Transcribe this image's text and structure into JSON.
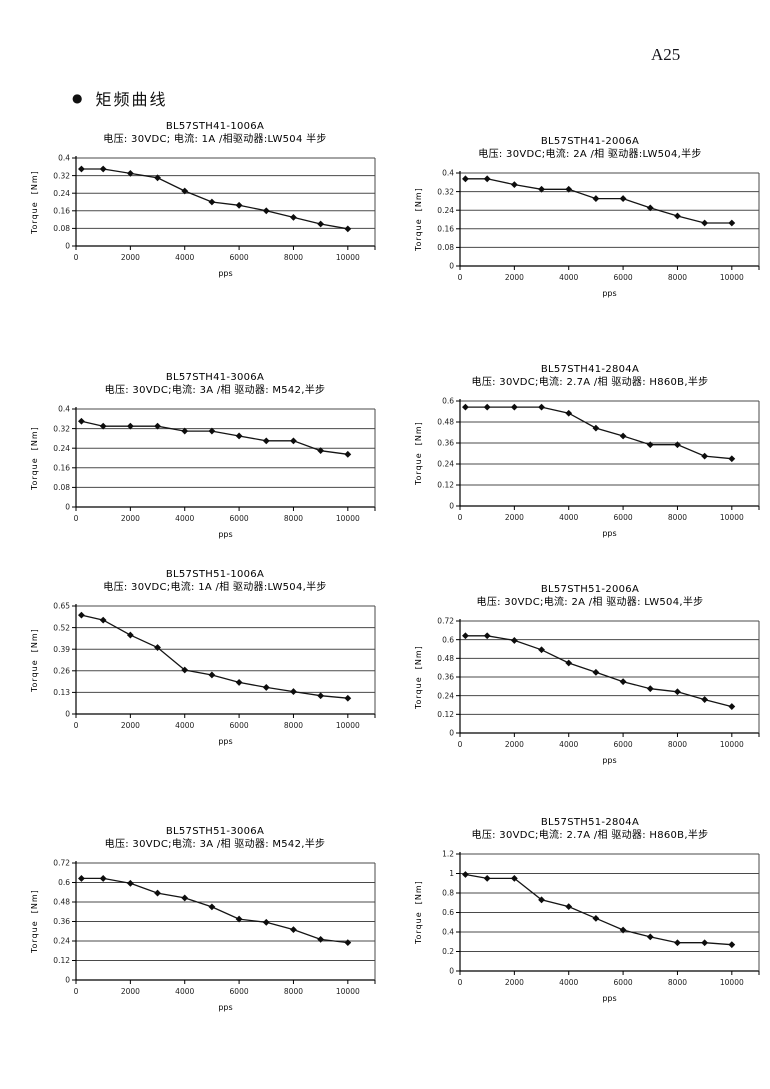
{
  "page": {
    "page_number": "A25",
    "section_bullet": "●",
    "section_title": "矩频曲线"
  },
  "chart_data": [
    {
      "type": "line",
      "title": "BL57STH41-1006A",
      "subtitle": "电压: 30VDC; 电流: 1A /相驱动器:LW504 半步",
      "xlabel": "pps",
      "ylabel": "Torque  [Nm]",
      "ylim": [
        0,
        0.4
      ],
      "yticks": [
        0,
        0.08,
        0.16,
        0.24,
        0.32,
        0.4
      ],
      "x_ticks": [
        0,
        2000,
        4000,
        6000,
        8000,
        10000
      ],
      "x_max": 11000,
      "x": [
        200,
        1000,
        2000,
        3000,
        4000,
        5000,
        6000,
        7000,
        8000,
        9000,
        10000
      ],
      "y": [
        0.35,
        0.35,
        0.33,
        0.31,
        0.25,
        0.2,
        0.185,
        0.16,
        0.13,
        0.1,
        0.078
      ]
    },
    {
      "type": "line",
      "title": "BL57STH41-2006A",
      "subtitle": "电压: 30VDC;电流: 2A /相 驱动器:LW504,半步",
      "xlabel": "pps",
      "ylabel": "Torque  [Nm]",
      "ylim": [
        0,
        0.4
      ],
      "yticks": [
        0,
        0.08,
        0.16,
        0.24,
        0.32,
        0.4
      ],
      "x_ticks": [
        0,
        2000,
        4000,
        6000,
        8000,
        10000
      ],
      "x_max": 11000,
      "x": [
        200,
        1000,
        2000,
        3000,
        4000,
        5000,
        6000,
        7000,
        8000,
        9000,
        10000
      ],
      "y": [
        0.375,
        0.375,
        0.35,
        0.33,
        0.33,
        0.29,
        0.29,
        0.25,
        0.215,
        0.185,
        0.185
      ]
    },
    {
      "type": "line",
      "title": "BL57STH41-3006A",
      "subtitle": "电压: 30VDC;电流: 3A /相  驱动器: M542,半步",
      "xlabel": "pps",
      "ylabel": "Torque  [Nm]",
      "ylim": [
        0,
        0.4
      ],
      "yticks": [
        0,
        0.08,
        0.16,
        0.24,
        0.32,
        0.4
      ],
      "x_ticks": [
        0,
        2000,
        4000,
        6000,
        8000,
        10000
      ],
      "x_max": 11000,
      "x": [
        200,
        1000,
        2000,
        3000,
        4000,
        5000,
        6000,
        7000,
        8000,
        9000,
        10000
      ],
      "y": [
        0.35,
        0.33,
        0.33,
        0.33,
        0.31,
        0.31,
        0.29,
        0.27,
        0.27,
        0.23,
        0.215
      ]
    },
    {
      "type": "line",
      "title": "BL57STH41-2804A",
      "subtitle": "电压: 30VDC;电流: 2.7A /相 驱动器: H860B,半步",
      "xlabel": "pps",
      "ylabel": "Torque  [Nm]",
      "ylim": [
        0,
        0.6
      ],
      "yticks": [
        0,
        0.12,
        0.24,
        0.36,
        0.48,
        0.6
      ],
      "x_ticks": [
        0,
        2000,
        4000,
        6000,
        8000,
        10000
      ],
      "x_max": 11000,
      "x": [
        200,
        1000,
        2000,
        3000,
        4000,
        5000,
        6000,
        7000,
        8000,
        9000,
        10000
      ],
      "y": [
        0.565,
        0.565,
        0.565,
        0.565,
        0.53,
        0.445,
        0.4,
        0.35,
        0.35,
        0.285,
        0.27
      ]
    },
    {
      "type": "line",
      "title": "BL57STH51-1006A",
      "subtitle": "电压: 30VDC;电流: 1A /相  驱动器:LW504,半步",
      "xlabel": "pps",
      "ylabel": "Torque  [Nm]",
      "ylim": [
        0,
        0.65
      ],
      "yticks": [
        0,
        0.13,
        0.26,
        0.39,
        0.52,
        0.65
      ],
      "x_ticks": [
        0,
        2000,
        4000,
        6000,
        8000,
        10000
      ],
      "x_max": 11000,
      "x": [
        200,
        1000,
        2000,
        3000,
        4000,
        5000,
        6000,
        7000,
        8000,
        9000,
        10000
      ],
      "y": [
        0.595,
        0.565,
        0.475,
        0.4,
        0.265,
        0.235,
        0.19,
        0.16,
        0.135,
        0.11,
        0.095
      ]
    },
    {
      "type": "line",
      "title": "BL57STH51-2006A",
      "subtitle": "电压: 30VDC;电流: 2A /相  驱动器: LW504,半步",
      "xlabel": "pps",
      "ylabel": "Torque  [Nm]",
      "ylim": [
        0,
        0.72
      ],
      "yticks": [
        0,
        0.12,
        0.24,
        0.36,
        0.48,
        0.6,
        0.72
      ],
      "x_ticks": [
        0,
        2000,
        4000,
        6000,
        8000,
        10000
      ],
      "x_max": 11000,
      "x": [
        200,
        1000,
        2000,
        3000,
        4000,
        5000,
        6000,
        7000,
        8000,
        9000,
        10000
      ],
      "y": [
        0.625,
        0.625,
        0.595,
        0.535,
        0.45,
        0.39,
        0.33,
        0.285,
        0.265,
        0.215,
        0.17
      ]
    },
    {
      "type": "line",
      "title": "BL57STH51-3006A",
      "subtitle": "电压: 30VDC;电流: 3A /相  驱动器: M542,半步",
      "xlabel": "pps",
      "ylabel": "Torque  [Nm]",
      "ylim": [
        0,
        0.72
      ],
      "yticks": [
        0,
        0.12,
        0.24,
        0.36,
        0.48,
        0.6,
        0.72
      ],
      "x_ticks": [
        0,
        2000,
        4000,
        6000,
        8000,
        10000
      ],
      "x_max": 11000,
      "x": [
        200,
        1000,
        2000,
        3000,
        4000,
        5000,
        6000,
        7000,
        8000,
        9000,
        10000
      ],
      "y": [
        0.625,
        0.625,
        0.595,
        0.535,
        0.505,
        0.45,
        0.375,
        0.355,
        0.31,
        0.25,
        0.23
      ]
    },
    {
      "type": "line",
      "title": "BL57STH51-2804A",
      "subtitle": "电压: 30VDC;电流: 2.7A /相  驱动器: H860B,半步",
      "xlabel": "pps",
      "ylabel": "Torque  [Nm]",
      "ylim": [
        0,
        1.2
      ],
      "yticks": [
        0,
        0.2,
        0.4,
        0.6,
        0.8,
        1,
        1.2
      ],
      "x_ticks": [
        0,
        2000,
        4000,
        6000,
        8000,
        10000
      ],
      "x_max": 11000,
      "x": [
        200,
        1000,
        2000,
        3000,
        4000,
        5000,
        6000,
        7000,
        8000,
        9000,
        10000
      ],
      "y": [
        0.99,
        0.95,
        0.95,
        0.73,
        0.66,
        0.54,
        0.42,
        0.35,
        0.29,
        0.29,
        0.27
      ]
    }
  ]
}
